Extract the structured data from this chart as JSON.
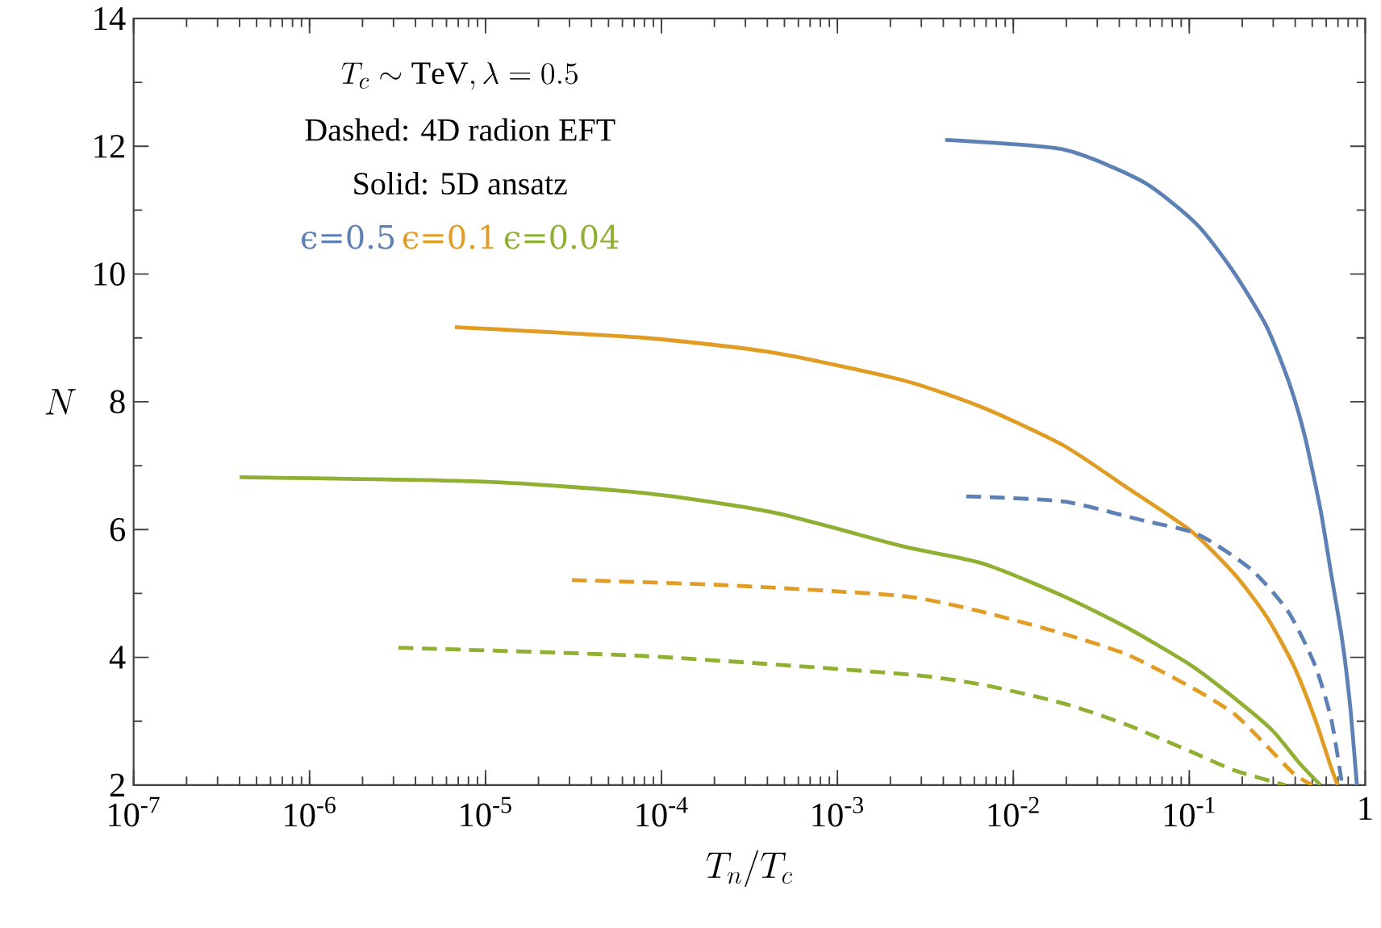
{
  "chart_data": {
    "type": "line",
    "xlabel": "T_n/T_c",
    "ylabel": "N",
    "log": "x",
    "grid": false,
    "xlim": [
      1e-07,
      1
    ],
    "ylim": [
      2,
      14
    ],
    "xticks": [
      {
        "value": 1e-07,
        "label": "10$^{-7}$"
      },
      {
        "value": 1e-06,
        "label": "10$^{-6}$"
      },
      {
        "value": 1e-05,
        "label": "10$^{-5}$"
      },
      {
        "value": 0.0001,
        "label": "10$^{-4}$"
      },
      {
        "value": 0.001,
        "label": "10$^{-3}$"
      },
      {
        "value": 0.01,
        "label": "10$^{-2}$"
      },
      {
        "value": 0.1,
        "label": "10$^{-1}$"
      },
      1
    ],
    "yticks": [
      2,
      4,
      6,
      8,
      10,
      12,
      14
    ],
    "annotations": [
      "T_c \\sim \\mathrm{TeV}, \\lambda = 0.5",
      "Dashed: 4D radion EFT",
      "Solid: 5D ansatz"
    ],
    "series": [
      {
        "name": "ϵ=0.5",
        "color": "#5e81b5",
        "line_style": "solid",
        "x": [
          0.0041,
          0.0192,
          0.055,
          0.111,
          0.181,
          0.276,
          0.366,
          0.451,
          0.557,
          0.641,
          0.738,
          0.818,
          0.897
        ],
        "values": [
          12.1,
          11.95,
          11.44,
          10.77,
          10.01,
          9.17,
          8.33,
          7.49,
          6.31,
          5.3,
          4.29,
          3.28,
          2.0
        ]
      },
      {
        "name": "ϵ=0.1",
        "color": "#e19c24",
        "line_style": "solid",
        "x": [
          6.7e-06,
          8.1e-05,
          0.00043,
          0.00234,
          0.0067,
          0.0192,
          0.0446,
          0.103,
          0.181,
          0.276,
          0.392,
          0.519,
          0.641,
          0.697
        ],
        "values": [
          9.17,
          9.0,
          8.77,
          8.34,
          7.91,
          7.32,
          6.65,
          5.97,
          5.3,
          4.63,
          3.87,
          3.03,
          2.27,
          2.0
        ]
      },
      {
        "name": "ϵ=0.04",
        "color": "#8fb032",
        "line_style": "solid",
        "x": [
          4e-07,
          9.8e-06,
          8.1e-05,
          0.00043,
          0.00234,
          0.0067,
          0.0192,
          0.0446,
          0.103,
          0.181,
          0.296,
          0.421,
          0.557
        ],
        "values": [
          6.82,
          6.75,
          6.57,
          6.27,
          5.74,
          5.47,
          4.96,
          4.46,
          3.87,
          3.36,
          2.86,
          2.35,
          2.0
        ]
      },
      {
        "color": "#5e81b5",
        "line_style": "dashed",
        "x": [
          0.0054,
          0.0192,
          0.055,
          0.111,
          0.224,
          0.366,
          0.519,
          0.641,
          0.738
        ],
        "values": [
          6.52,
          6.44,
          6.14,
          5.93,
          5.38,
          4.71,
          3.87,
          3.03,
          2.02
        ]
      },
      {
        "color": "#e19c24",
        "line_style": "dashed",
        "x": [
          3.1e-05,
          0.00023,
          0.00234,
          0.0067,
          0.0192,
          0.0446,
          0.103,
          0.181,
          0.276,
          0.392,
          0.5
        ],
        "values": [
          5.21,
          5.13,
          4.96,
          4.71,
          4.37,
          4.04,
          3.53,
          3.11,
          2.61,
          2.18,
          2.0
        ]
      },
      {
        "color": "#8fb032",
        "line_style": "dashed",
        "x": [
          3.2e-06,
          8.1e-05,
          0.00234,
          0.0067,
          0.0192,
          0.0446,
          0.103,
          0.181,
          0.353
        ],
        "values": [
          4.15,
          4.02,
          3.74,
          3.57,
          3.28,
          2.94,
          2.52,
          2.23,
          2.0
        ]
      }
    ]
  }
}
